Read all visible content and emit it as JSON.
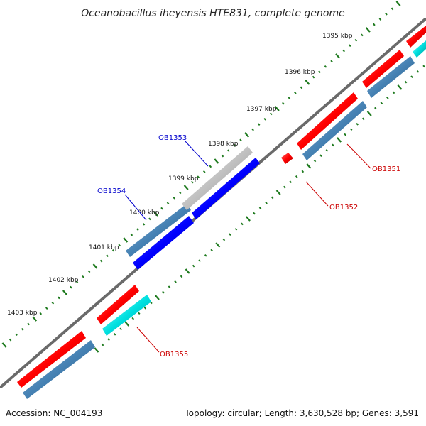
{
  "title": "Oceanobacillus iheyensis HTE831, complete genome",
  "footer": {
    "accession": "Accession: NC_004193",
    "summary": "Topology: circular; Length: 3,630,528 bp; Genes: 3,591"
  },
  "ticks": [
    {
      "label": "1395 kbp"
    },
    {
      "label": "1396 kbp"
    },
    {
      "label": "1397 kbp"
    },
    {
      "label": "1398 kbp"
    },
    {
      "label": "1399 kbp"
    },
    {
      "label": "1400 kbp"
    },
    {
      "label": "1401 kbp"
    },
    {
      "label": "1402 kbp"
    },
    {
      "label": "1403 kbp"
    }
  ],
  "gene_labels": [
    {
      "label": "OB1351",
      "color": "#cc0000"
    },
    {
      "label": "OB1352",
      "color": "#cc0000"
    },
    {
      "label": "OB1353",
      "color": "#0000cc"
    },
    {
      "label": "OB1354",
      "color": "#0000cc"
    },
    {
      "label": "OB1355",
      "color": "#cc0000"
    }
  ],
  "colors": {
    "backbone": "#6a6a6a",
    "tick": "#1e7a1e",
    "red": "#ff0000",
    "steel": "#4682b4",
    "blue": "#0000ff",
    "gray": "#c0c0c0",
    "cyan": "#00e0e0"
  }
}
